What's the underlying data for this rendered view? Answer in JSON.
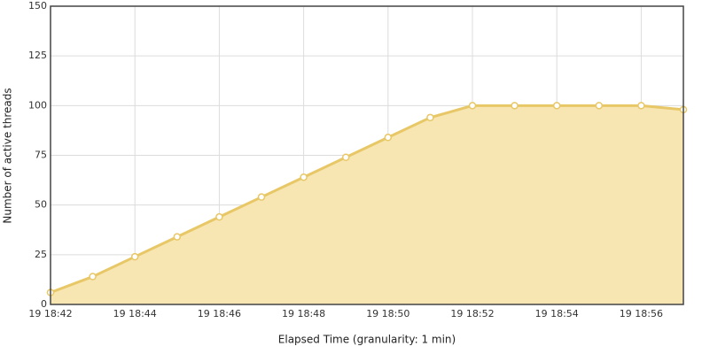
{
  "chart_data": {
    "type": "area",
    "x_label": "Elapsed Time (granularity: 1 min)",
    "y_label": "Number of active threads",
    "categories": [
      "19 18:42",
      null,
      "19 18:44",
      null,
      "19 18:46",
      null,
      "19 18:48",
      null,
      "19 18:50",
      null,
      "19 18:52",
      null,
      "19 18:54",
      null,
      "19 18:56",
      null
    ],
    "values": [
      6,
      14,
      24,
      34,
      44,
      54,
      64,
      74,
      84,
      94,
      100,
      100,
      100,
      100,
      100,
      98
    ],
    "color": "#e8c766",
    "fill_color": "#f7e5b2",
    "ylim": [
      0,
      150
    ],
    "yticks": [
      0,
      25,
      50,
      75,
      100,
      125,
      150
    ],
    "grid": true
  }
}
